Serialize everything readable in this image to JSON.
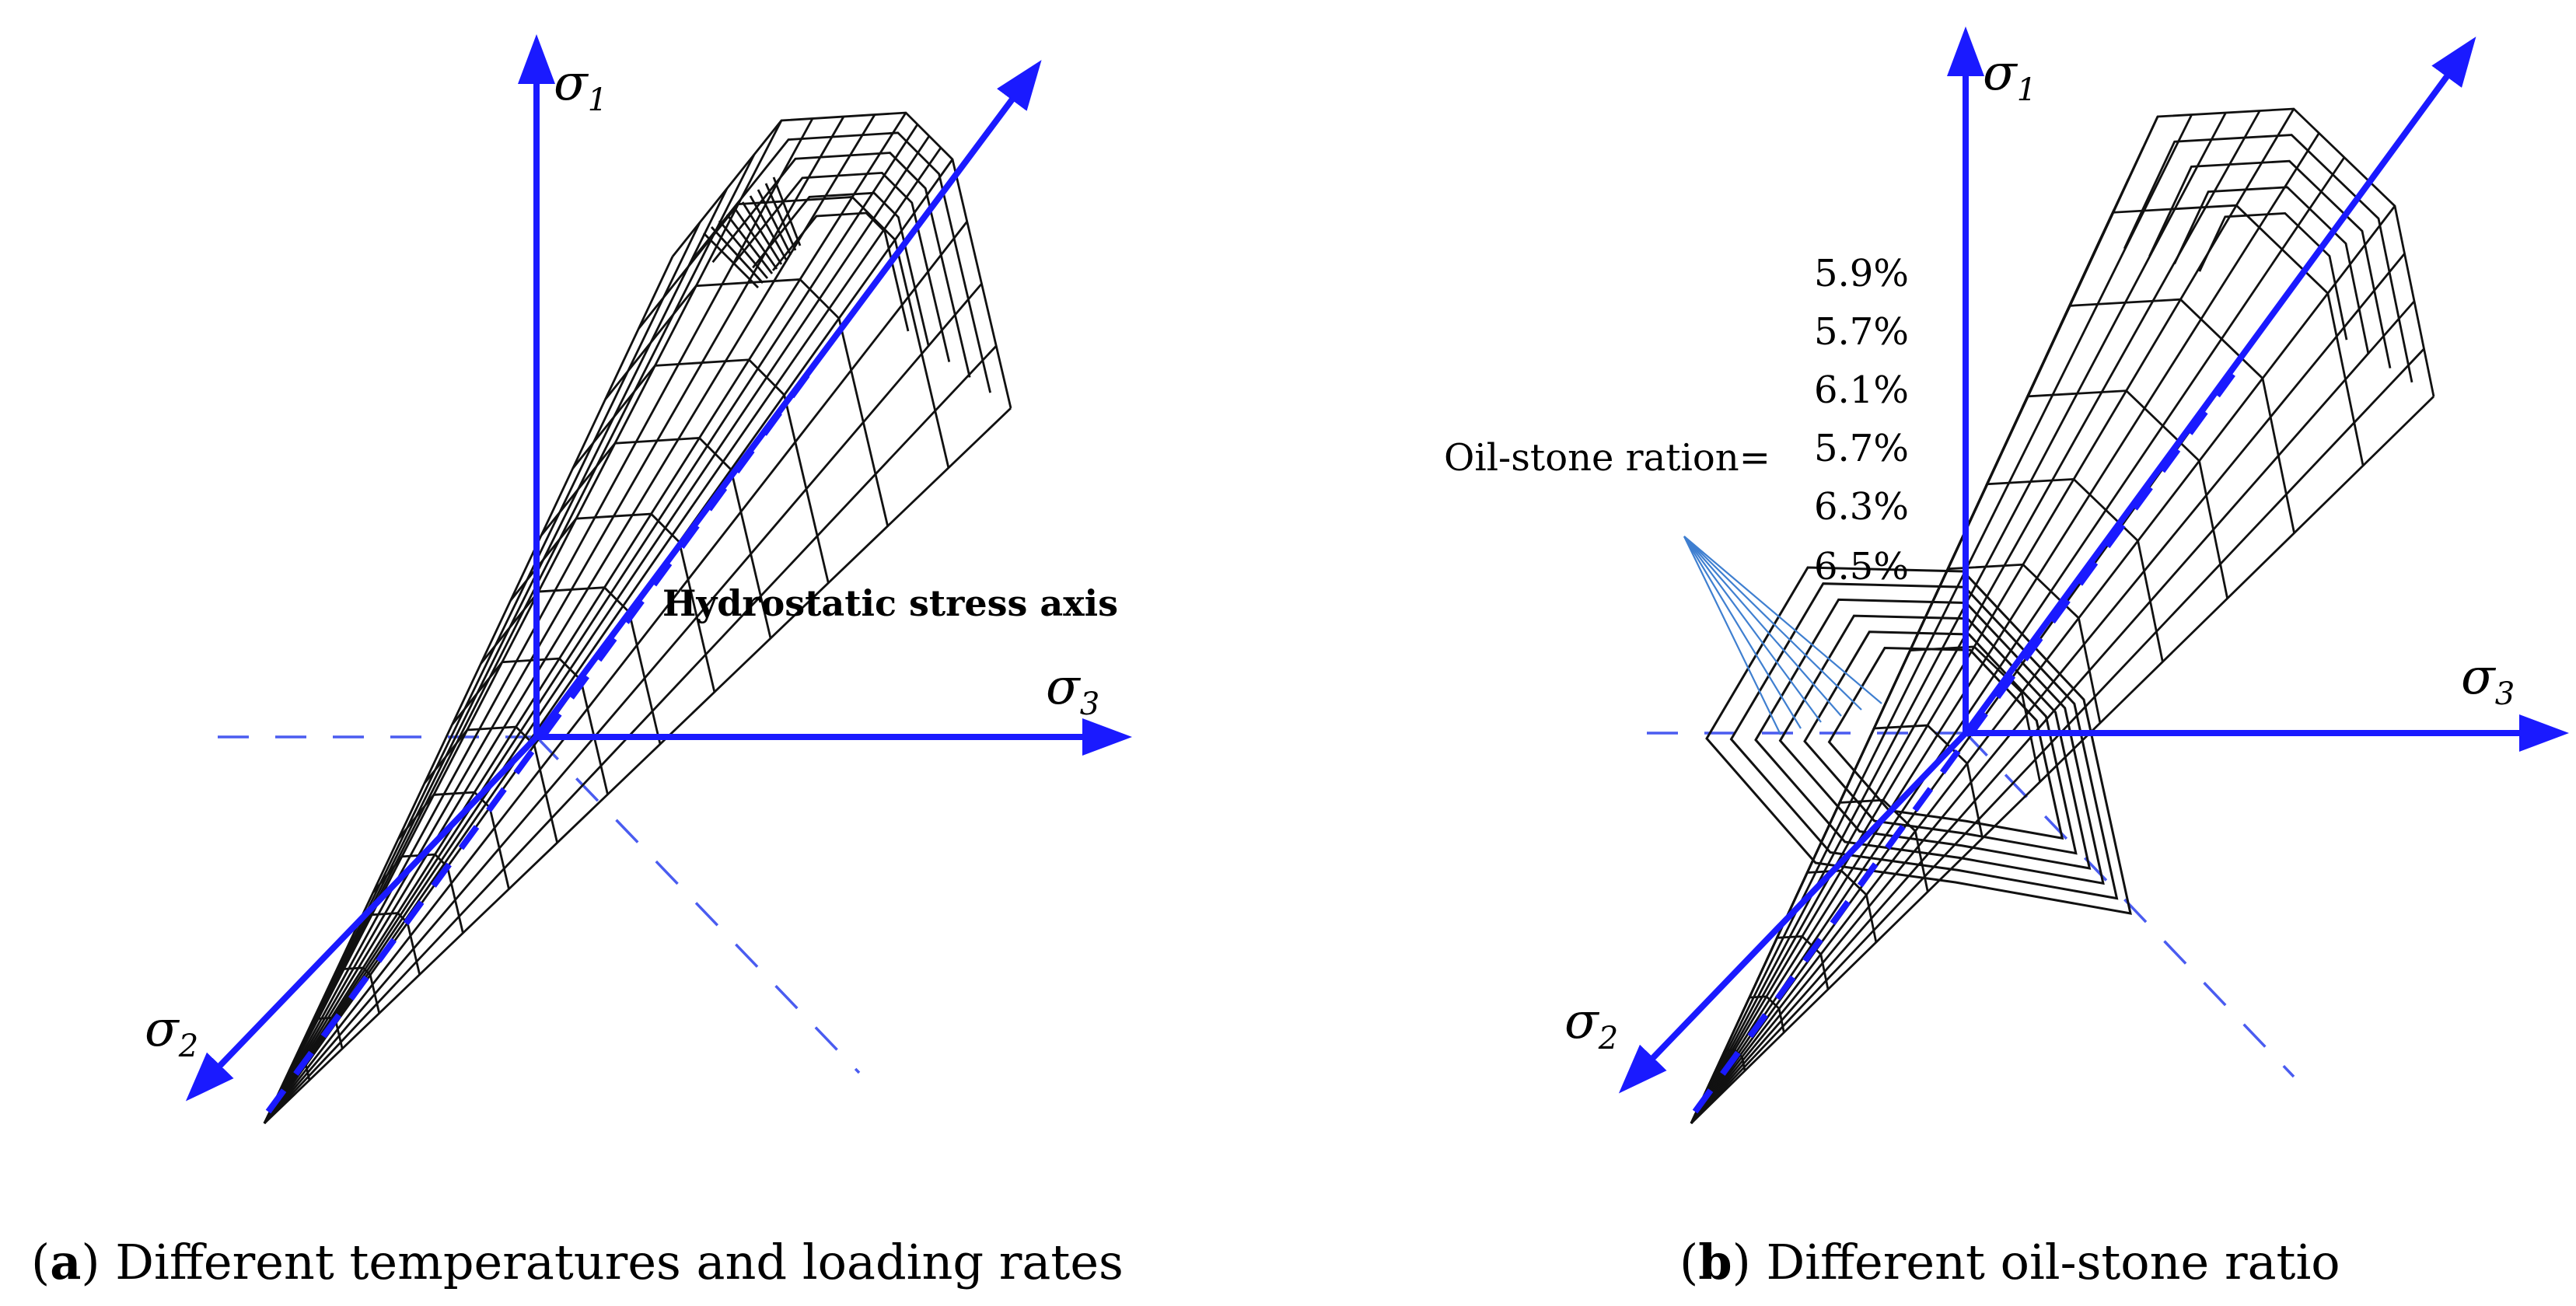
{
  "panels": [
    {
      "id": "a",
      "axis_labels": {
        "s1": "σ",
        "s1_sub": "1",
        "s2": "σ",
        "s2_sub": "2",
        "s3": "σ",
        "s3_sub": "3"
      },
      "annotation": "Hydrostatic stress axis",
      "caption_letter": "a",
      "caption_text": " Different temperatures and loading rates"
    },
    {
      "id": "b",
      "axis_labels": {
        "s1": "σ",
        "s1_sub": "1",
        "s2": "σ",
        "s2_sub": "2",
        "s3": "σ",
        "s3_sub": "3"
      },
      "annotation": "Oil-stone ration=",
      "ratios": [
        "5.9%",
        "5.7%",
        "6.1%",
        "5.7%",
        "6.3%",
        "6.5%"
      ],
      "caption_letter": "b",
      "caption_text": " Different oil-stone ratio"
    }
  ],
  "colors": {
    "axis": "#1a1aff",
    "mesh": "#111111",
    "leader": "#3f7fd0"
  }
}
